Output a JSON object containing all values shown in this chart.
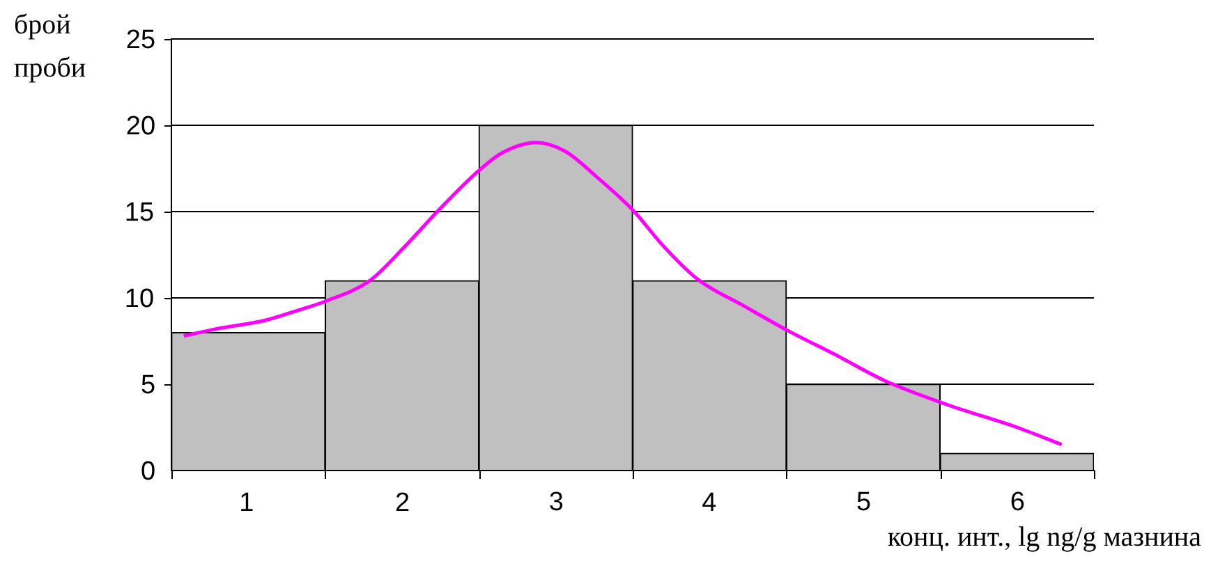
{
  "chart_data": {
    "type": "histogram",
    "ylabel": "брой проби",
    "xlabel": "конц. инт., lg ng/g мазнина",
    "bins": [
      0.5,
      1.5,
      2.5,
      3.5,
      4.5,
      5.5,
      6.5
    ],
    "values": [
      8,
      11,
      20,
      11,
      5,
      1
    ],
    "color": "#c0c0c0",
    "xlim": [
      0.5,
      6.5
    ],
    "xticks": [
      {
        "value": 0.5,
        "label": null
      },
      1,
      {
        "value": 1.5,
        "label": null
      },
      2,
      {
        "value": 2.5,
        "label": null
      },
      3,
      {
        "value": 3.5,
        "label": null
      },
      4,
      {
        "value": 4.5,
        "label": null
      },
      5,
      {
        "value": 5.5,
        "label": null
      },
      6,
      {
        "value": 6.5,
        "label": null
      }
    ],
    "ylim": [
      0,
      25
    ],
    "yticks": [
      0,
      5,
      10,
      15,
      20,
      25
    ],
    "grid": "y",
    "legend": false,
    "series": [
      {
        "type": "line",
        "color": "#ff00ff",
        "marker": "none",
        "x": [
          0.58,
          0.79,
          1.11,
          1.33,
          1.5,
          1.79,
          2.01,
          2.24,
          2.49,
          2.65,
          2.87,
          3.06,
          3.28,
          3.51,
          3.69,
          3.92,
          4.23,
          4.51,
          4.82,
          5.14,
          5.55,
          6.0,
          6.29
        ],
        "values": [
          7.8,
          8.2,
          8.7,
          9.3,
          9.8,
          11.0,
          12.9,
          15.1,
          17.3,
          18.4,
          19.0,
          18.5,
          16.9,
          15.0,
          13.1,
          11.1,
          9.5,
          8.1,
          6.7,
          5.2,
          3.8,
          2.5,
          1.5
        ]
      }
    ]
  }
}
